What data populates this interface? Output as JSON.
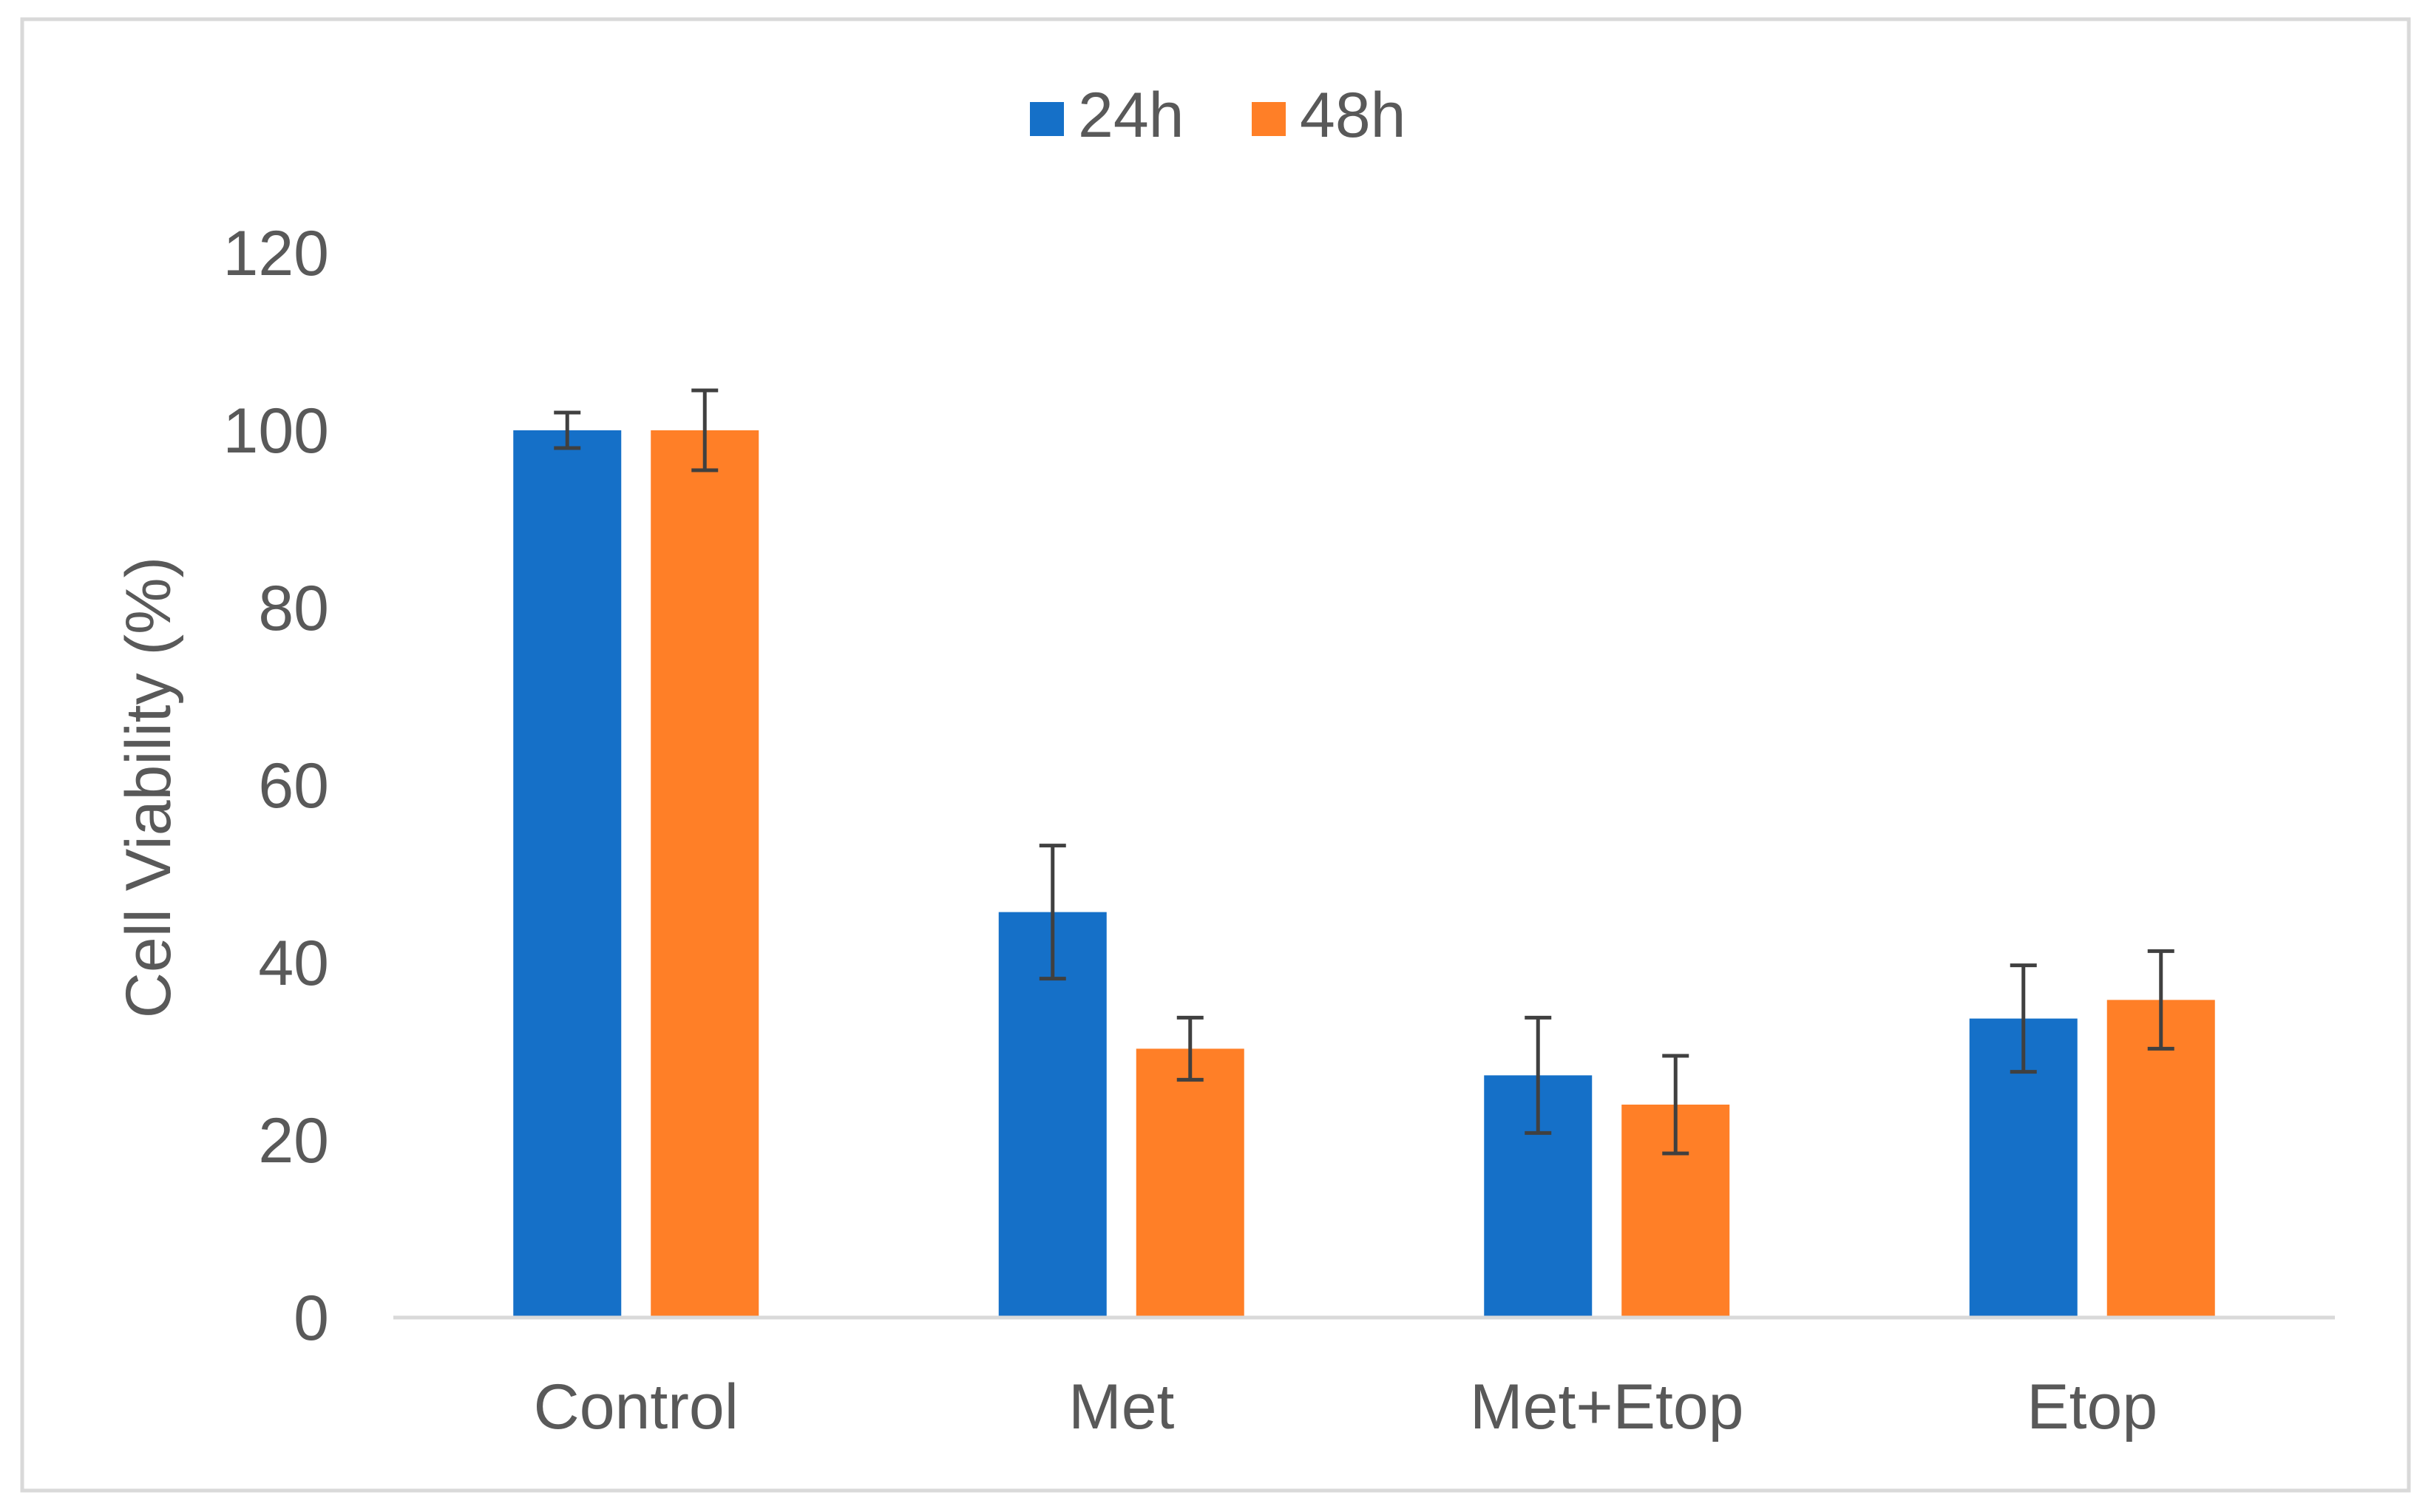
{
  "chart_data": {
    "type": "bar",
    "title": "",
    "xlabel": "",
    "ylabel": "Cell Viability (%)",
    "categories": [
      "Control",
      "Met",
      "Met+Etop",
      "Etop"
    ],
    "series": [
      {
        "name": "24h",
        "color": "#1570C8",
        "values": [
          100,
          45.7,
          27.3,
          33.7
        ],
        "errors": [
          2,
          7.5,
          6.5,
          6
        ]
      },
      {
        "name": "48h",
        "color": "#FF7F27",
        "values": [
          100,
          30.3,
          24,
          35.8
        ],
        "errors": [
          4.5,
          3.5,
          5.5,
          5.5
        ]
      }
    ],
    "ylim": [
      0,
      120
    ],
    "yticks": [
      0,
      20,
      40,
      60,
      80,
      100,
      120
    ],
    "grid": false,
    "legend_position": "top-center",
    "colors": {
      "axis_line": "#D9D9D9",
      "frame": "#D9D9D9",
      "text": "#595959",
      "error_bar": "#404040"
    }
  }
}
